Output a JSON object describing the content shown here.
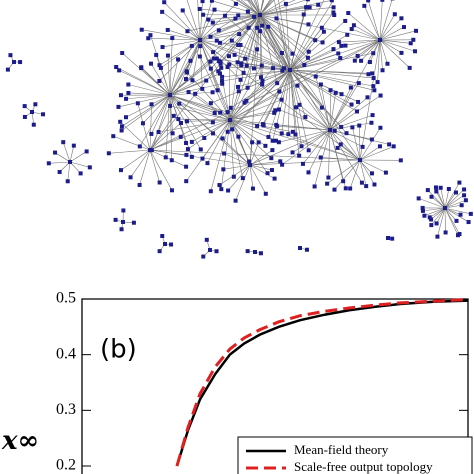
{
  "chart_data": {
    "type": "line",
    "annotation": "(b)",
    "ylabel": "x∞",
    "x": [
      0.246,
      0.275,
      0.306,
      0.345,
      0.383,
      0.42,
      0.461,
      0.51,
      0.565,
      0.63,
      0.694,
      0.76,
      0.824,
      0.91,
      1.0
    ],
    "series": [
      {
        "name": "Mean-field theory",
        "color": "#000000",
        "dash": false,
        "values": [
          0.2,
          0.265,
          0.32,
          0.365,
          0.4,
          0.42,
          0.436,
          0.45,
          0.462,
          0.472,
          0.48,
          0.486,
          0.491,
          0.495,
          0.497
        ]
      },
      {
        "name": "Scale-free output topology",
        "color": "#e02020",
        "dash": true,
        "values": [
          0.2,
          0.27,
          0.33,
          0.378,
          0.41,
          0.43,
          0.445,
          0.459,
          0.47,
          0.478,
          0.484,
          0.489,
          0.493,
          0.496,
          0.499
        ]
      }
    ],
    "xlim": [
      0,
      1
    ],
    "ylim": [
      0.2,
      0.5
    ],
    "yticks": [
      0.2,
      0.3,
      0.4,
      0.5
    ]
  }
}
